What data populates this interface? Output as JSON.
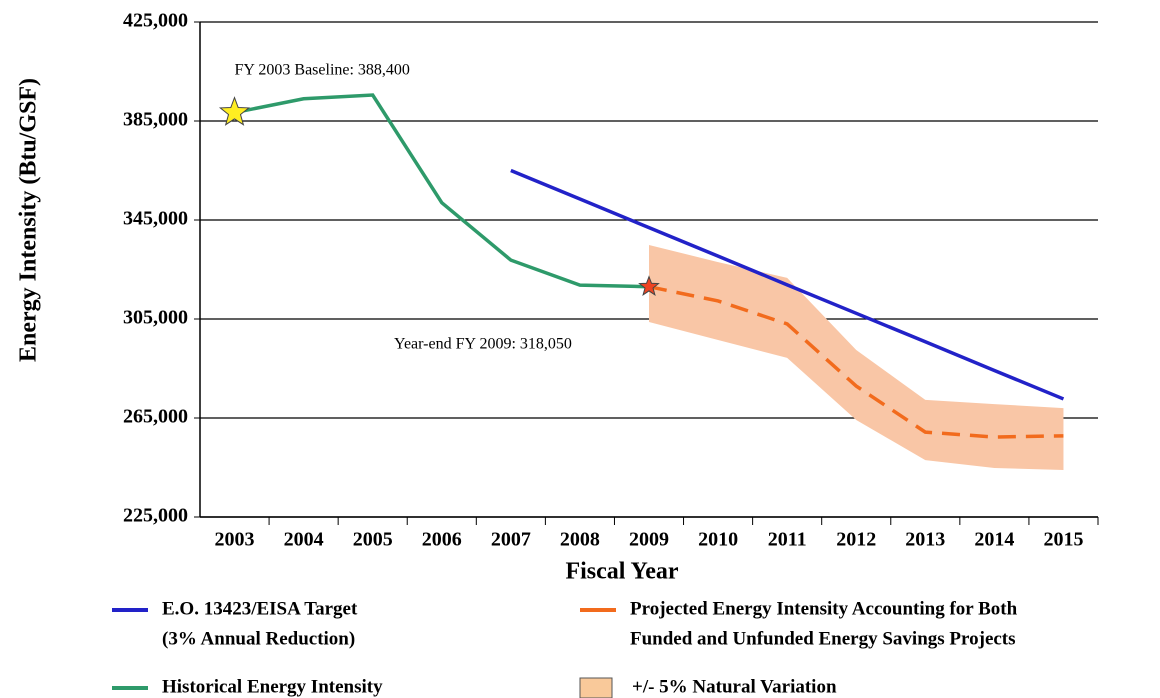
{
  "chart_data": {
    "type": "line",
    "xlabel": "Fiscal Year",
    "ylabel": "Energy Intensity (Btu/GSF)",
    "categories": [
      "2003",
      "2004",
      "2005",
      "2006",
      "2007",
      "2008",
      "2009",
      "2010",
      "2011",
      "2012",
      "2013",
      "2014",
      "2015"
    ],
    "ylim": [
      225000,
      425000
    ],
    "yticks": [
      {
        "value": 225000,
        "label": "225,000"
      },
      {
        "value": 265000,
        "label": "265,000"
      },
      {
        "value": 305000,
        "label": "305,000"
      },
      {
        "value": 345000,
        "label": "345,000"
      },
      {
        "value": 385000,
        "label": "385,000"
      },
      {
        "value": 425000,
        "label": "425,000"
      }
    ],
    "grid": true,
    "series": [
      {
        "name": [
          "E.O. 13423/EISA Target",
          "(3% Annual Reduction)"
        ],
        "color": "#2222c8",
        "style": "solid",
        "values": [
          null,
          null,
          null,
          null,
          365000,
          353500,
          341900,
          330400,
          318800,
          307300,
          295800,
          284200,
          272700
        ]
      },
      {
        "name": [
          "Projected Energy Intensity Accounting for Both",
          "Funded and Unfunded Energy Savings Projects"
        ],
        "color": "#f26b1d",
        "style": "dashed",
        "values": [
          null,
          null,
          null,
          null,
          null,
          null,
          318050,
          312300,
          303000,
          277900,
          259300,
          257300,
          257800
        ]
      },
      {
        "name": [
          "Historical Energy Intensity"
        ],
        "color": "#2e9a6a",
        "style": "solid",
        "values": [
          388400,
          394000,
          395500,
          352000,
          328800,
          318700,
          318050,
          null,
          null,
          null,
          null,
          null,
          null
        ]
      },
      {
        "name": [
          "+/- 5% Natural Variation"
        ],
        "color": "#f9c6a6",
        "style": "band",
        "upper": [
          null,
          null,
          null,
          null,
          null,
          null,
          334900,
          328000,
          321600,
          292500,
          272300,
          270600,
          269000
        ],
        "lower": [
          null,
          null,
          null,
          null,
          null,
          null,
          303800,
          296500,
          289300,
          264200,
          248000,
          244800,
          244000
        ]
      }
    ],
    "annotations": [
      {
        "text": "FY 2003 Baseline: 388,400",
        "series": 2,
        "index": 0,
        "marker_color": "#ffee22"
      },
      {
        "text": "Year-end FY 2009: 318,050",
        "series": 2,
        "index": 6,
        "marker_color": "#ee4422"
      }
    ]
  }
}
